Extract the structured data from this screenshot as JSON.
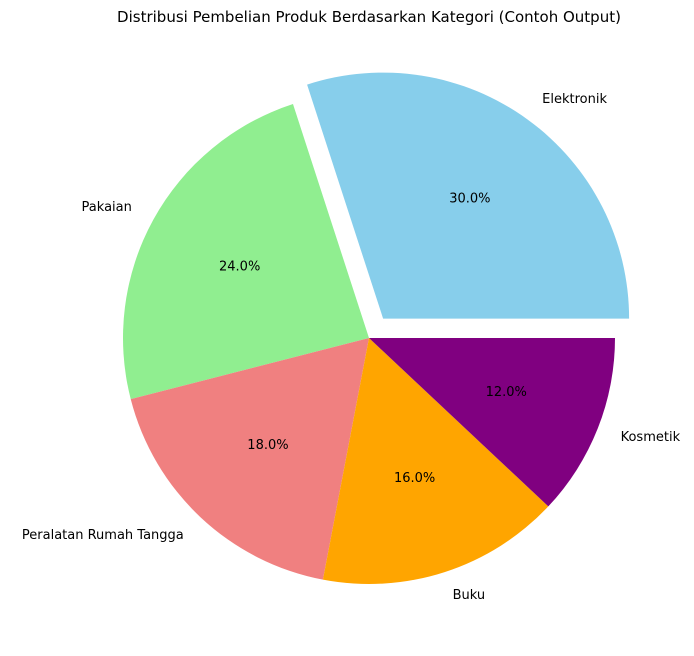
{
  "chart_data": {
    "type": "pie",
    "title": "Distribusi Pembelian Produk Berdasarkan Kategori (Contoh Output)",
    "categories": [
      "Elektronik",
      "Pakaian",
      "Peralatan Rumah Tangga",
      "Buku",
      "Kosmetik"
    ],
    "values": [
      30,
      24,
      18,
      16,
      12
    ],
    "value_labels": [
      "30.0%",
      "24.0%",
      "18.0%",
      "16.0%",
      "12.0%"
    ],
    "colors": [
      "#87ceeb",
      "#90ee90",
      "#f08080",
      "#ffa500",
      "#800080"
    ],
    "exploded": [
      "Elektronik"
    ],
    "start_angle_deg": 0,
    "direction": "counterclockwise",
    "legend": "none"
  }
}
